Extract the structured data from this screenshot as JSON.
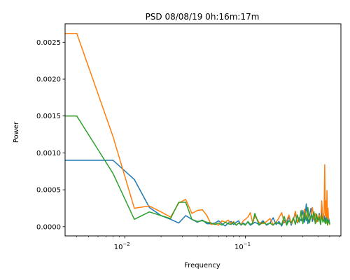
{
  "chart_data": {
    "type": "line",
    "title": "PSD 08/08/19 0h:16m:17m",
    "xlabel": "Frequency",
    "ylabel": "Power",
    "xscale": "log",
    "xlim": [
      0.0032,
      0.62
    ],
    "ylim": [
      -0.000125,
      0.00275
    ],
    "grid": false,
    "legend": "none",
    "x_ticks": [
      {
        "value": 0.01,
        "label": "10",
        "exp": "−2"
      },
      {
        "value": 0.1,
        "label": "10",
        "exp": "−1"
      }
    ],
    "y_ticks": [
      {
        "value": 0.0,
        "label": "0.0000"
      },
      {
        "value": 0.0005,
        "label": "0.0005"
      },
      {
        "value": 0.001,
        "label": "0.0010"
      },
      {
        "value": 0.0015,
        "label": "0.0015"
      },
      {
        "value": 0.002,
        "label": "0.0020"
      },
      {
        "value": 0.0025,
        "label": "0.0025"
      }
    ],
    "series": [
      {
        "color": "#1f77b4",
        "x": [
          0.0032,
          0.004,
          0.008,
          0.012,
          0.016,
          0.02,
          0.024,
          0.028,
          0.032,
          0.036,
          0.04,
          0.044,
          0.048,
          0.052,
          0.056,
          0.06,
          0.064,
          0.068,
          0.072,
          0.076,
          0.08,
          0.084,
          0.088,
          0.092,
          0.096,
          0.1,
          0.105,
          0.11,
          0.115,
          0.12,
          0.13,
          0.14,
          0.15,
          0.16,
          0.17,
          0.18,
          0.19,
          0.2,
          0.21,
          0.22,
          0.23,
          0.24,
          0.25,
          0.26,
          0.27,
          0.28,
          0.29,
          0.3,
          0.31,
          0.32,
          0.33,
          0.34,
          0.35,
          0.36,
          0.37,
          0.38,
          0.39,
          0.4,
          0.41,
          0.42,
          0.43,
          0.44,
          0.45,
          0.46,
          0.47,
          0.48,
          0.49,
          0.5
        ],
        "values": [
          0.0009,
          0.0009,
          0.0009,
          0.00064,
          0.00026,
          0.00015,
          0.0001,
          5e-05,
          0.00015,
          0.0001,
          6e-05,
          9e-05,
          4e-05,
          4e-05,
          5e-05,
          8e-05,
          4e-05,
          1e-05,
          5e-05,
          7e-05,
          3e-05,
          6e-05,
          8e-05,
          2e-05,
          5e-05,
          3e-05,
          6e-05,
          2e-05,
          4e-05,
          6e-05,
          3e-05,
          8e-05,
          2e-05,
          5e-05,
          0.00012,
          3e-05,
          7e-05,
          1e-05,
          9e-05,
          4e-05,
          0.00014,
          2e-05,
          0.0001,
          0.00018,
          5e-05,
          0.00012,
          8e-05,
          0.00022,
          6e-05,
          0.00031,
          4e-05,
          0.00015,
          0.00025,
          7e-05,
          0.0002,
          5e-05,
          0.00014,
          9e-05,
          0.00018,
          3e-05,
          0.00022,
          8e-05,
          0.00015,
          6e-05,
          0.0002,
          4e-05,
          0.00012,
          5e-05
        ]
      },
      {
        "color": "#ff7f0e",
        "x": [
          0.0032,
          0.004,
          0.008,
          0.012,
          0.016,
          0.02,
          0.024,
          0.028,
          0.032,
          0.036,
          0.04,
          0.044,
          0.048,
          0.052,
          0.056,
          0.06,
          0.064,
          0.068,
          0.072,
          0.076,
          0.08,
          0.084,
          0.088,
          0.092,
          0.096,
          0.1,
          0.105,
          0.11,
          0.115,
          0.12,
          0.13,
          0.14,
          0.15,
          0.16,
          0.17,
          0.18,
          0.19,
          0.2,
          0.21,
          0.22,
          0.23,
          0.24,
          0.25,
          0.26,
          0.27,
          0.28,
          0.29,
          0.3,
          0.31,
          0.32,
          0.33,
          0.34,
          0.35,
          0.36,
          0.37,
          0.38,
          0.39,
          0.4,
          0.41,
          0.42,
          0.43,
          0.44,
          0.45,
          0.455,
          0.46,
          0.465,
          0.47,
          0.475,
          0.48,
          0.485,
          0.49,
          0.5
        ],
        "values": [
          0.00262,
          0.00262,
          0.00122,
          0.00025,
          0.00028,
          0.0002,
          0.00013,
          0.00032,
          0.00037,
          0.00018,
          0.00022,
          0.00023,
          0.00015,
          3e-05,
          4e-05,
          2e-05,
          8e-05,
          6e-05,
          9e-05,
          4e-05,
          7e-05,
          2e-05,
          5e-05,
          3e-05,
          8e-05,
          0.0001,
          0.00013,
          0.00019,
          5e-05,
          0.00014,
          6e-05,
          4e-05,
          7e-05,
          0.00011,
          3e-05,
          6e-05,
          0.00012,
          0.00019,
          5e-05,
          8e-05,
          0.00016,
          4e-05,
          9e-05,
          0.00021,
          6e-05,
          0.00011,
          0.00017,
          5e-05,
          0.00024,
          0.0001,
          0.00018,
          7e-05,
          0.00015,
          0.00026,
          9e-05,
          0.00018,
          6e-05,
          0.00012,
          0.00016,
          4e-05,
          0.00035,
          8e-05,
          0.0002,
          0.00084,
          0.00015,
          0.00035,
          5e-05,
          0.00049,
          0.00012,
          0.00025,
          8e-05,
          3e-05
        ]
      },
      {
        "color": "#2ca02c",
        "x": [
          0.0032,
          0.004,
          0.008,
          0.012,
          0.016,
          0.02,
          0.024,
          0.028,
          0.032,
          0.036,
          0.04,
          0.044,
          0.048,
          0.052,
          0.056,
          0.06,
          0.064,
          0.068,
          0.072,
          0.076,
          0.08,
          0.084,
          0.088,
          0.092,
          0.096,
          0.1,
          0.105,
          0.11,
          0.115,
          0.12,
          0.13,
          0.14,
          0.15,
          0.16,
          0.17,
          0.18,
          0.19,
          0.2,
          0.21,
          0.22,
          0.23,
          0.24,
          0.25,
          0.26,
          0.27,
          0.28,
          0.29,
          0.3,
          0.31,
          0.32,
          0.33,
          0.34,
          0.35,
          0.36,
          0.37,
          0.38,
          0.39,
          0.4,
          0.41,
          0.42,
          0.43,
          0.44,
          0.45,
          0.46,
          0.47,
          0.48,
          0.49,
          0.5
        ],
        "values": [
          0.0015,
          0.0015,
          0.00072,
          0.0001,
          0.0002,
          0.00015,
          0.00011,
          0.00033,
          0.00033,
          0.0001,
          7e-05,
          8e-05,
          6e-05,
          5e-05,
          3e-05,
          5e-05,
          2e-05,
          6e-05,
          4e-05,
          3e-05,
          6e-05,
          2e-05,
          5e-05,
          3e-05,
          4e-05,
          2e-05,
          7e-05,
          3e-05,
          5e-05,
          0.00018,
          2e-05,
          6e-05,
          3e-05,
          5e-05,
          2e-05,
          6e-05,
          4e-05,
          3e-05,
          0.00014,
          2e-05,
          8e-05,
          5e-05,
          0.00012,
          3e-05,
          0.00016,
          6e-05,
          0.00022,
          4e-05,
          0.00019,
          8e-05,
          0.00026,
          5e-05,
          0.00015,
          0.00011,
          0.0002,
          4e-05,
          0.00017,
          7e-05,
          0.00013,
          3e-05,
          0.00015,
          6e-05,
          0.0001,
          4e-05,
          0.00012,
          2e-05,
          9e-05,
          4e-05
        ]
      }
    ]
  }
}
